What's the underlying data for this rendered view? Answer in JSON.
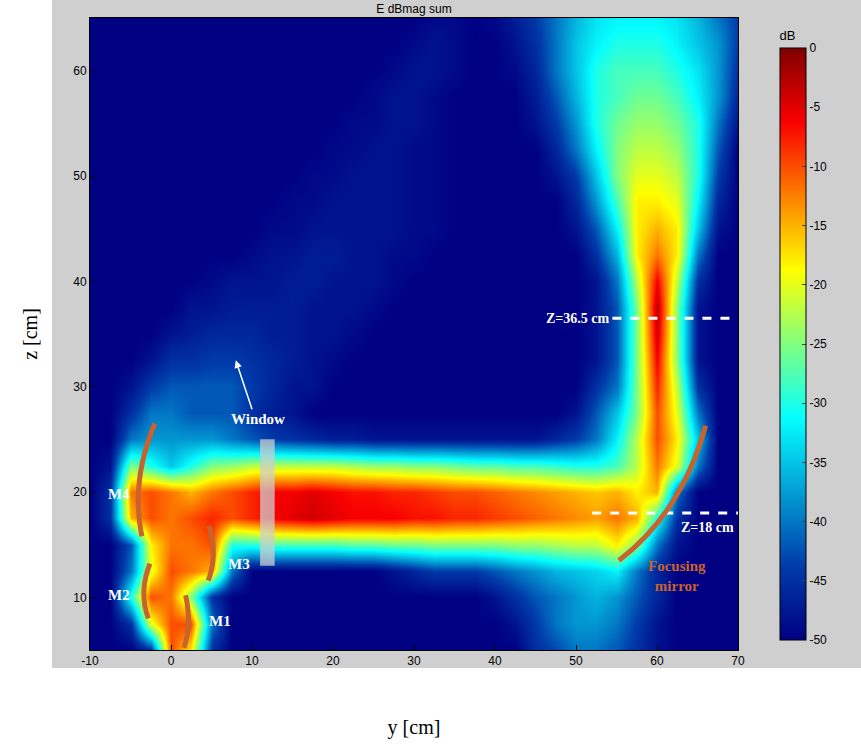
{
  "chart_data": {
    "type": "heatmap",
    "title": "E dBmag sum",
    "x_label": "y [cm]",
    "y_label": "z [cm]",
    "color": "Jet",
    "grid": true,
    "xlim": [
      -10,
      70
    ],
    "ylim": [
      5,
      65
    ],
    "xticks": [
      -10,
      0,
      10,
      20,
      30,
      40,
      50,
      60,
      70
    ],
    "yticks": [
      10,
      20,
      30,
      40,
      50,
      60
    ],
    "colorbar": {
      "title": "dB",
      "range": [
        -50,
        0
      ],
      "ticks": [
        0,
        -5,
        -10,
        -15,
        -20,
        -25,
        -30,
        -35,
        -40,
        -45,
        -50
      ]
    },
    "annotations": [
      "Window",
      "M1",
      "M2",
      "M3",
      "M4",
      "Focusing mirror"
    ],
    "markers": [
      {
        "text": "Z=36.5 cm",
        "z": 36.5
      },
      {
        "text": "Z=18 cm",
        "z": 18
      }
    ],
    "x": [
      -10,
      -7.5,
      -5,
      -2.5,
      0,
      2.5,
      5,
      7.5,
      10,
      12.5,
      15,
      17.5,
      20,
      22.5,
      25,
      27.5,
      30,
      32.5,
      35,
      37.5,
      40,
      42.5,
      45,
      47.5,
      50,
      52.5,
      55,
      57.5,
      60,
      62.5,
      65,
      67.5,
      70
    ],
    "y": [
      5,
      7.5,
      10,
      12.5,
      15,
      17.5,
      20,
      22.5,
      25,
      27.5,
      30,
      32.5,
      35,
      37.5,
      40,
      42.5,
      45,
      47.5,
      50,
      52.5,
      55,
      57.5,
      60,
      62.5,
      65
    ],
    "cells": [
      [
        -50,
        -50,
        -50,
        -45,
        -10,
        -18,
        -45,
        -50,
        -50,
        -50,
        -50,
        -50,
        -50,
        -50,
        -50,
        -50,
        -50,
        -50,
        -50,
        -50,
        -50,
        -50,
        -45,
        -43,
        -40,
        -40,
        -42,
        -45,
        -48,
        -50,
        -50,
        -50,
        -50
      ],
      [
        -50,
        -50,
        -45,
        -20,
        -10,
        -10,
        -40,
        -50,
        -50,
        -50,
        -50,
        -50,
        -50,
        -50,
        -50,
        -50,
        -50,
        -50,
        -50,
        -50,
        -50,
        -48,
        -44,
        -40,
        -38,
        -38,
        -40,
        -44,
        -48,
        -50,
        -50,
        -50,
        -50
      ],
      [
        -50,
        -50,
        -30,
        -10,
        -12,
        -25,
        -45,
        -50,
        -50,
        -50,
        -50,
        -50,
        -50,
        -50,
        -50,
        -50,
        -50,
        -50,
        -50,
        -50,
        -48,
        -45,
        -42,
        -40,
        -38,
        -36,
        -38,
        -42,
        -46,
        -50,
        -50,
        -50,
        -50
      ],
      [
        -50,
        -50,
        -40,
        -20,
        -10,
        -12,
        -15,
        -40,
        -50,
        -50,
        -50,
        -50,
        -50,
        -50,
        -50,
        -48,
        -46,
        -44,
        -44,
        -44,
        -42,
        -40,
        -38,
        -36,
        -35,
        -34,
        -32,
        -40,
        -46,
        -50,
        -50,
        -50,
        -50
      ],
      [
        -50,
        -50,
        -42,
        -18,
        -12,
        -12,
        -10,
        -30,
        -30,
        -28,
        -28,
        -28,
        -28,
        -27,
        -27,
        -26,
        -26,
        -25,
        -25,
        -25,
        -25,
        -24,
        -24,
        -23,
        -22,
        -22,
        -18,
        -25,
        -40,
        -48,
        -50,
        -50,
        -50
      ],
      [
        -50,
        -45,
        -15,
        -10,
        -12,
        -10,
        -8,
        -10,
        -8,
        -6,
        -5,
        -4,
        -5,
        -6,
        -6,
        -6,
        -7,
        -7,
        -8,
        -8,
        -9,
        -10,
        -11,
        -12,
        -13,
        -14,
        -12,
        -15,
        -30,
        -45,
        -50,
        -50,
        -50
      ],
      [
        -50,
        -45,
        -12,
        -10,
        -12,
        -15,
        -12,
        -10,
        -8,
        -6,
        -6,
        -5,
        -6,
        -7,
        -7,
        -8,
        -8,
        -9,
        -10,
        -10,
        -11,
        -12,
        -13,
        -14,
        -15,
        -16,
        -15,
        -18,
        -15,
        -40,
        -50,
        -50,
        -50
      ],
      [
        -50,
        -48,
        -25,
        -30,
        -35,
        -30,
        -25,
        -24,
        -22,
        -22,
        -22,
        -22,
        -22,
        -23,
        -24,
        -24,
        -25,
        -25,
        -26,
        -27,
        -27,
        -28,
        -28,
        -29,
        -30,
        -30,
        -28,
        -22,
        -12,
        -20,
        -40,
        -50,
        -50
      ],
      [
        -50,
        -50,
        -40,
        -38,
        -38,
        -38,
        -38,
        -40,
        -42,
        -44,
        -45,
        -46,
        -47,
        -47,
        -48,
        -48,
        -48,
        -48,
        -48,
        -48,
        -48,
        -48,
        -48,
        -46,
        -44,
        -40,
        -32,
        -22,
        -10,
        -18,
        -35,
        -50,
        -50
      ],
      [
        -50,
        -50,
        -45,
        -40,
        -40,
        -42,
        -42,
        -42,
        -45,
        -47,
        -48,
        -50,
        -50,
        -50,
        -50,
        -50,
        -50,
        -50,
        -50,
        -50,
        -50,
        -50,
        -50,
        -50,
        -48,
        -42,
        -35,
        -25,
        -10,
        -20,
        -40,
        -50,
        -50
      ],
      [
        -50,
        -50,
        -48,
        -44,
        -42,
        -42,
        -42,
        -42,
        -44,
        -46,
        -48,
        -48,
        -50,
        -50,
        -50,
        -50,
        -50,
        -50,
        -50,
        -50,
        -50,
        -50,
        -50,
        -50,
        -50,
        -45,
        -40,
        -25,
        -8,
        -22,
        -45,
        -50,
        -50
      ],
      [
        -50,
        -50,
        -50,
        -48,
        -45,
        -45,
        -44,
        -44,
        -45,
        -46,
        -47,
        -48,
        -49,
        -50,
        -50,
        -50,
        -50,
        -50,
        -50,
        -50,
        -50,
        -50,
        -50,
        -50,
        -50,
        -48,
        -42,
        -25,
        -6,
        -25,
        -48,
        -50,
        -50
      ],
      [
        -50,
        -50,
        -50,
        -50,
        -48,
        -47,
        -46,
        -46,
        -46,
        -47,
        -47,
        -48,
        -48,
        -49,
        -50,
        -50,
        -50,
        -50,
        -50,
        -50,
        -50,
        -50,
        -50,
        -50,
        -50,
        -48,
        -42,
        -25,
        -4,
        -25,
        -48,
        -50,
        -50
      ],
      [
        -50,
        -50,
        -50,
        -50,
        -50,
        -48,
        -48,
        -47,
        -47,
        -47,
        -47,
        -48,
        -48,
        -48,
        -49,
        -50,
        -50,
        -50,
        -50,
        -50,
        -50,
        -50,
        -50,
        -50,
        -50,
        -48,
        -42,
        -25,
        -3,
        -25,
        -48,
        -50,
        -50
      ],
      [
        -50,
        -50,
        -50,
        -50,
        -50,
        -50,
        -49,
        -48,
        -48,
        -48,
        -47,
        -47,
        -48,
        -48,
        -48,
        -49,
        -50,
        -50,
        -50,
        -50,
        -50,
        -50,
        -50,
        -50,
        -50,
        -48,
        -40,
        -22,
        -6,
        -22,
        -45,
        -50,
        -50
      ],
      [
        -50,
        -50,
        -50,
        -50,
        -50,
        -50,
        -50,
        -50,
        -49,
        -48,
        -48,
        -47,
        -47,
        -48,
        -48,
        -49,
        -49,
        -50,
        -50,
        -50,
        -50,
        -50,
        -50,
        -50,
        -50,
        -45,
        -36,
        -18,
        -12,
        -18,
        -40,
        -50,
        -50
      ],
      [
        -50,
        -50,
        -50,
        -50,
        -50,
        -50,
        -50,
        -50,
        -50,
        -49,
        -49,
        -48,
        -48,
        -48,
        -48,
        -48,
        -49,
        -49,
        -50,
        -50,
        -50,
        -50,
        -50,
        -50,
        -48,
        -42,
        -32,
        -18,
        -15,
        -18,
        -35,
        -48,
        -50
      ],
      [
        -50,
        -50,
        -50,
        -50,
        -50,
        -50,
        -50,
        -50,
        -50,
        -50,
        -49,
        -49,
        -48,
        -48,
        -48,
        -48,
        -49,
        -49,
        -50,
        -50,
        -50,
        -50,
        -50,
        -50,
        -46,
        -38,
        -28,
        -18,
        -18,
        -20,
        -32,
        -46,
        -50
      ],
      [
        -50,
        -50,
        -50,
        -50,
        -50,
        -50,
        -50,
        -50,
        -50,
        -50,
        -50,
        -49,
        -49,
        -48,
        -48,
        -48,
        -49,
        -49,
        -50,
        -50,
        -50,
        -50,
        -50,
        -48,
        -44,
        -35,
        -25,
        -20,
        -20,
        -22,
        -30,
        -44,
        -50
      ],
      [
        -50,
        -50,
        -50,
        -50,
        -50,
        -50,
        -50,
        -50,
        -50,
        -50,
        -50,
        -50,
        -49,
        -49,
        -48,
        -48,
        -49,
        -49,
        -50,
        -50,
        -50,
        -50,
        -50,
        -46,
        -40,
        -32,
        -25,
        -22,
        -22,
        -24,
        -30,
        -42,
        -50
      ],
      [
        -50,
        -50,
        -50,
        -50,
        -50,
        -50,
        -50,
        -50,
        -50,
        -50,
        -50,
        -50,
        -50,
        -49,
        -49,
        -48,
        -48,
        -49,
        -50,
        -50,
        -50,
        -50,
        -48,
        -44,
        -38,
        -30,
        -26,
        -24,
        -24,
        -26,
        -30,
        -40,
        -48
      ],
      [
        -50,
        -50,
        -50,
        -50,
        -50,
        -50,
        -50,
        -50,
        -50,
        -50,
        -50,
        -50,
        -50,
        -50,
        -49,
        -48,
        -48,
        -49,
        -50,
        -50,
        -50,
        -50,
        -47,
        -42,
        -36,
        -30,
        -28,
        -26,
        -26,
        -28,
        -32,
        -38,
        -46
      ],
      [
        -50,
        -50,
        -50,
        -50,
        -50,
        -50,
        -50,
        -50,
        -50,
        -50,
        -50,
        -50,
        -50,
        -50,
        -50,
        -49,
        -48,
        -48,
        -49,
        -50,
        -50,
        -49,
        -46,
        -40,
        -35,
        -30,
        -28,
        -28,
        -28,
        -30,
        -33,
        -38,
        -45
      ],
      [
        -50,
        -50,
        -50,
        -50,
        -50,
        -50,
        -50,
        -50,
        -50,
        -50,
        -50,
        -50,
        -50,
        -50,
        -50,
        -50,
        -49,
        -48,
        -49,
        -50,
        -50,
        -48,
        -45,
        -40,
        -35,
        -32,
        -30,
        -30,
        -30,
        -32,
        -35,
        -38,
        -44
      ],
      [
        -50,
        -50,
        -50,
        -50,
        -50,
        -50,
        -50,
        -50,
        -50,
        -50,
        -50,
        -50,
        -50,
        -50,
        -50,
        -50,
        -50,
        -49,
        -49,
        -50,
        -49,
        -47,
        -44,
        -40,
        -36,
        -33,
        -32,
        -32,
        -32,
        -33,
        -36,
        -40,
        -44
      ]
    ]
  }
}
